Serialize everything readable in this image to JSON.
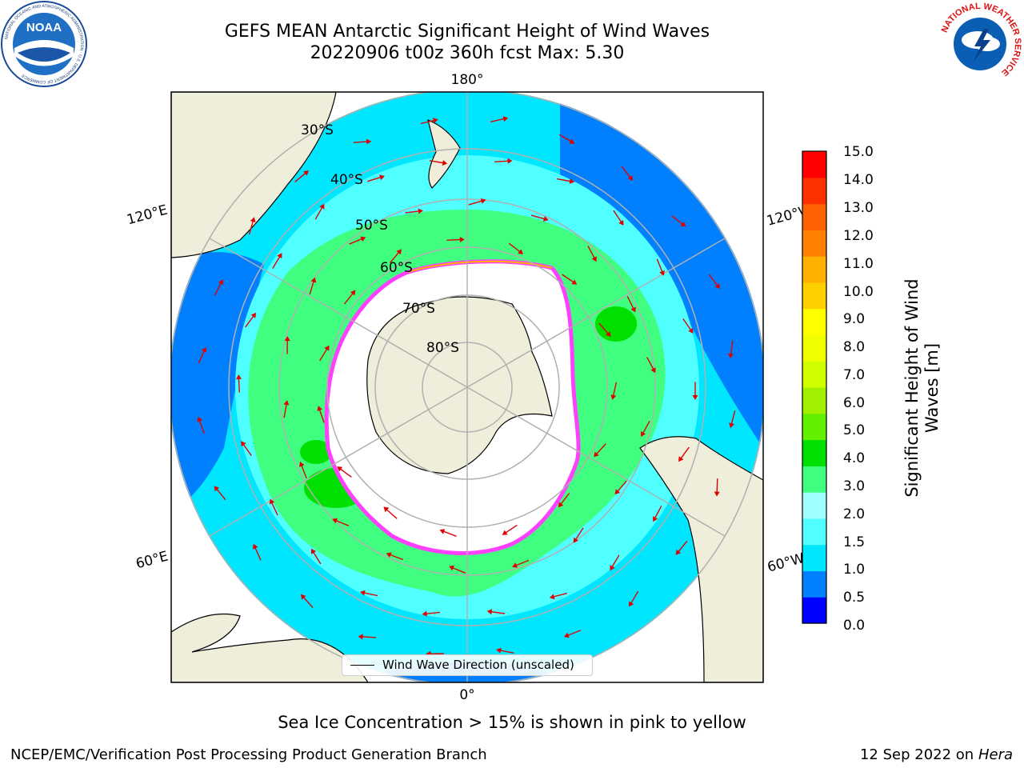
{
  "header": {
    "title_line1": "GEFS MEAN Antarctic Significant Height of Wind Waves",
    "title_line2": "20220906 t00z 360h fcst   Max: 5.30"
  },
  "logos": {
    "left_text": "NOAA",
    "left_ring_text": "NATIONAL OCEANIC AND ATMOSPHERIC ADMINISTRATION · U.S. DEPARTMENT OF COMMERCE",
    "right_ring_text": "NATIONAL WEATHER SERVICE"
  },
  "map": {
    "longitude_labels": [
      "180°",
      "0°",
      "120°E",
      "60°E",
      "120°W",
      "60°W"
    ],
    "latitude_labels": [
      "30°S",
      "40°S",
      "50°S",
      "60°S",
      "70°S",
      "80°S"
    ],
    "legend_label": "Wind Wave Direction (unscaled)"
  },
  "colorbar": {
    "label": "Significant Height of Wind Waves [m]",
    "ticks": [
      "15.0",
      "14.0",
      "13.0",
      "12.0",
      "11.0",
      "10.0",
      "9.0",
      "8.0",
      "7.0",
      "6.0",
      "5.0",
      "4.0",
      "3.0",
      "2.0",
      "1.5",
      "1.0",
      "0.5",
      "0.0"
    ],
    "colors": [
      "#0000ff",
      "#0080ff",
      "#00e6ff",
      "#50ffff",
      "#a0ffff",
      "#40ff80",
      "#00e000",
      "#60f000",
      "#a0f000",
      "#d0ff00",
      "#f0ff00",
      "#ffff00",
      "#ffd000",
      "#ffb000",
      "#ff8000",
      "#ff6000",
      "#ff3000",
      "#ff0000"
    ]
  },
  "notes": {
    "ice_note": "Sea Ice Concentration > 15% is shown in pink to yellow",
    "producer": "NCEP/EMC/Verification Post Processing Product Generation Branch",
    "date": "12 Sep 2022 on",
    "host": "Hera"
  }
}
